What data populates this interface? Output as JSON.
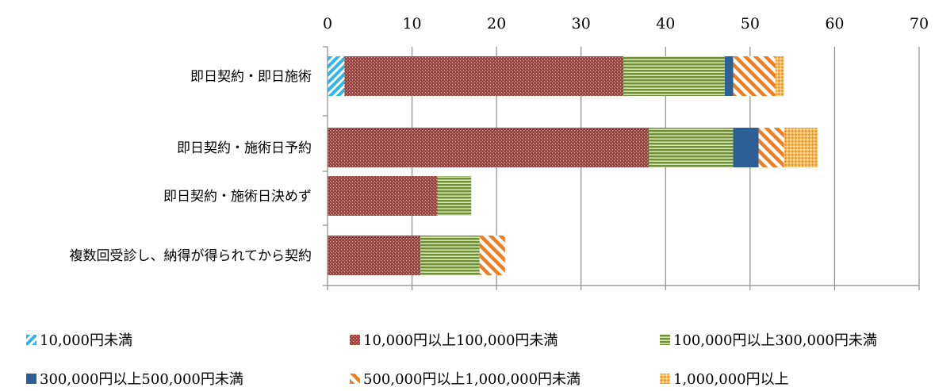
{
  "chart_data": {
    "type": "bar",
    "orientation": "horizontal",
    "stacked": true,
    "categories": [
      "即日契約・即日施術",
      "即日契約・施術日予約",
      "即日契約・施術日決めず",
      "複数回受診し、納得が得られてから契約"
    ],
    "series": [
      {
        "name": "10,000円未満",
        "values": [
          2,
          0,
          0,
          0
        ],
        "color": "#2EB6E8",
        "pattern": "diag-stripe"
      },
      {
        "name": "10,000円以上100,000円未満",
        "values": [
          33,
          38,
          13,
          11
        ],
        "color": "#9E3A36",
        "pattern": "dots"
      },
      {
        "name": "100,000円以上300,000円未満",
        "values": [
          12,
          10,
          4,
          7
        ],
        "color": "#7A9A3F",
        "pattern": "horiz-stripe"
      },
      {
        "name": "300,000円以上500,000円未満",
        "values": [
          1,
          3,
          0,
          0
        ],
        "color": "#2C5F96",
        "pattern": "solid"
      },
      {
        "name": "500,000円以上1,000,000円未満",
        "values": [
          5,
          3,
          0,
          3
        ],
        "color": "#F07D21",
        "pattern": "wide-diag"
      },
      {
        "name": "1,000,000円以上",
        "values": [
          1,
          4,
          0,
          0
        ],
        "color": "#F39A1E",
        "pattern": "check"
      }
    ],
    "x_ticks": [
      "0",
      "10",
      "20",
      "30",
      "40",
      "50",
      "60",
      "70"
    ],
    "xlim": [
      0,
      70
    ],
    "x_axis_position": "top",
    "grid": "vertical",
    "legend_position": "bottom"
  }
}
